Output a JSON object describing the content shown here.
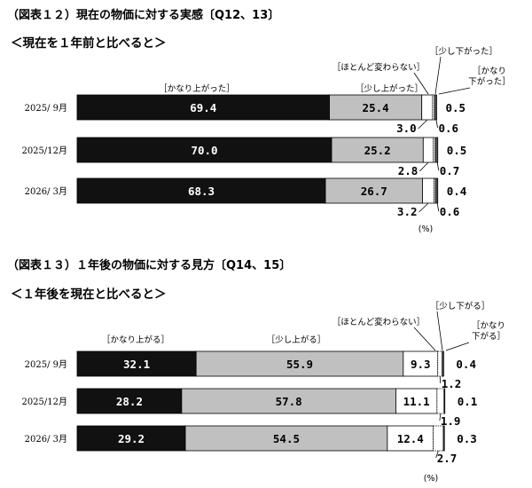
{
  "chart_data": [
    {
      "type": "bar",
      "stacked": "horizontal-100",
      "title": "（図表１２）現在の物価に対する実感〔Q12、13〕",
      "subtitle": "＜現在を１年前と比べると＞",
      "unit": "(%)",
      "categories": [
        "2025/ 9月",
        "2025/12月",
        "2026/ 3月"
      ],
      "series": [
        {
          "name": "［かなり上がった］",
          "color": "#111111",
          "values": [
            69.4,
            70.0,
            68.3
          ],
          "labels": [
            "69.4",
            "70.0",
            "68.3"
          ]
        },
        {
          "name": "［少し上がった］",
          "color": "#c0c0c0",
          "values": [
            25.4,
            25.2,
            26.7
          ],
          "labels": [
            "25.4",
            "25.2",
            "26.7"
          ]
        },
        {
          "name": "［ほとんど変わらない］",
          "color": "#ffffff",
          "values": [
            3.0,
            2.8,
            3.2
          ],
          "labels": [
            "3.0",
            "2.8",
            "3.2"
          ]
        },
        {
          "name": "［少し下がった］",
          "color": "#ffffff",
          "values": [
            0.5,
            0.5,
            0.4
          ],
          "labels": [
            "0.5",
            "0.5",
            "0.4"
          ]
        },
        {
          "name": "［かなり下がった］",
          "color": "#555555",
          "values": [
            0.6,
            0.7,
            0.6
          ],
          "labels": [
            "0.6",
            "0.7",
            "0.6"
          ]
        }
      ]
    },
    {
      "type": "bar",
      "stacked": "horizontal-100",
      "title": "（図表１３）１年後の物価に対する見方〔Q14、15〕",
      "subtitle": "＜１年後を現在と比べると＞",
      "unit": "(%)",
      "categories": [
        "2025/ 9月",
        "2025/12月",
        "2026/ 3月"
      ],
      "series": [
        {
          "name": "［かなり上がる］",
          "color": "#111111",
          "values": [
            32.1,
            28.2,
            29.2
          ],
          "labels": [
            "32.1",
            "28.2",
            "29.2"
          ]
        },
        {
          "name": "［少し上がる］",
          "color": "#c0c0c0",
          "values": [
            55.9,
            57.8,
            54.5
          ],
          "labels": [
            "55.9",
            "57.8",
            "54.5"
          ]
        },
        {
          "name": "［ほとんど変わらない］",
          "color": "#ffffff",
          "values": [
            9.3,
            11.1,
            12.4
          ],
          "labels": [
            "9.3",
            "11.1",
            "12.4"
          ]
        },
        {
          "name": "［少し下がる］",
          "color": "#ffffff",
          "values": [
            1.2,
            1.9,
            2.7
          ],
          "labels": [
            "1.2",
            "1.9",
            "2.7"
          ]
        },
        {
          "name": "［かなり下がる］",
          "color": "#555555",
          "values": [
            0.4,
            0.1,
            0.3
          ],
          "labels": [
            "0.4",
            "0.1",
            "0.3"
          ]
        }
      ]
    }
  ]
}
